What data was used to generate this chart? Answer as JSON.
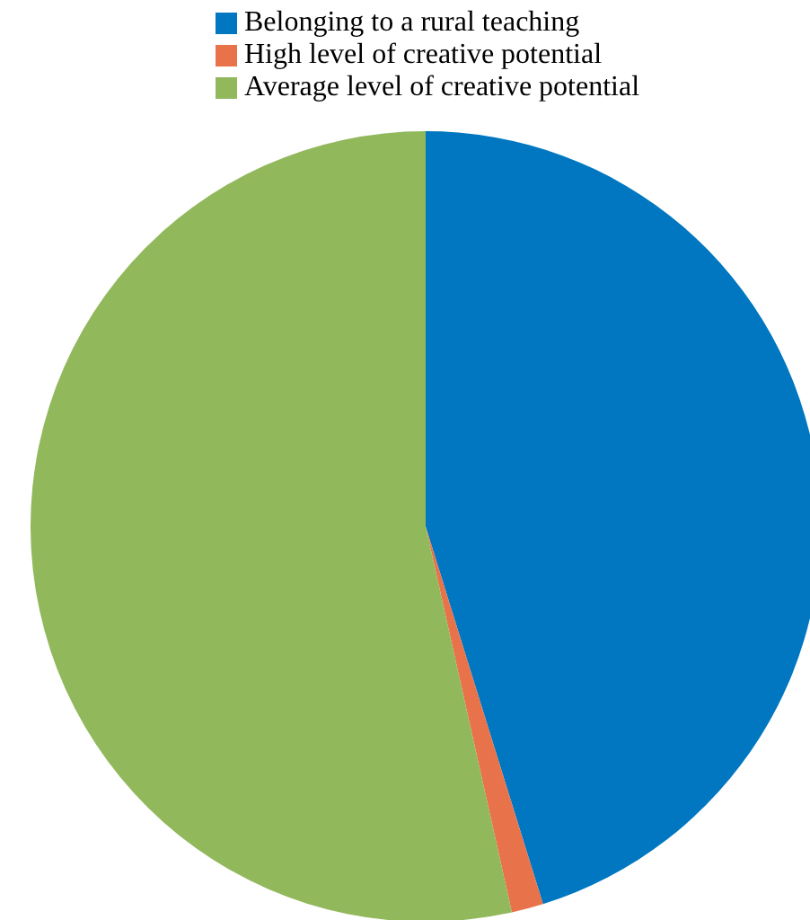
{
  "chart_data": {
    "type": "pie",
    "categories": [
      "Belonging to a rural teaching",
      "High level of creative potential",
      "Average level of creative potential"
    ],
    "values": [
      45.2,
      1.3,
      53.5
    ],
    "colors": [
      "#0077c0",
      "#e8734a",
      "#92b85c"
    ],
    "legend": "top"
  }
}
